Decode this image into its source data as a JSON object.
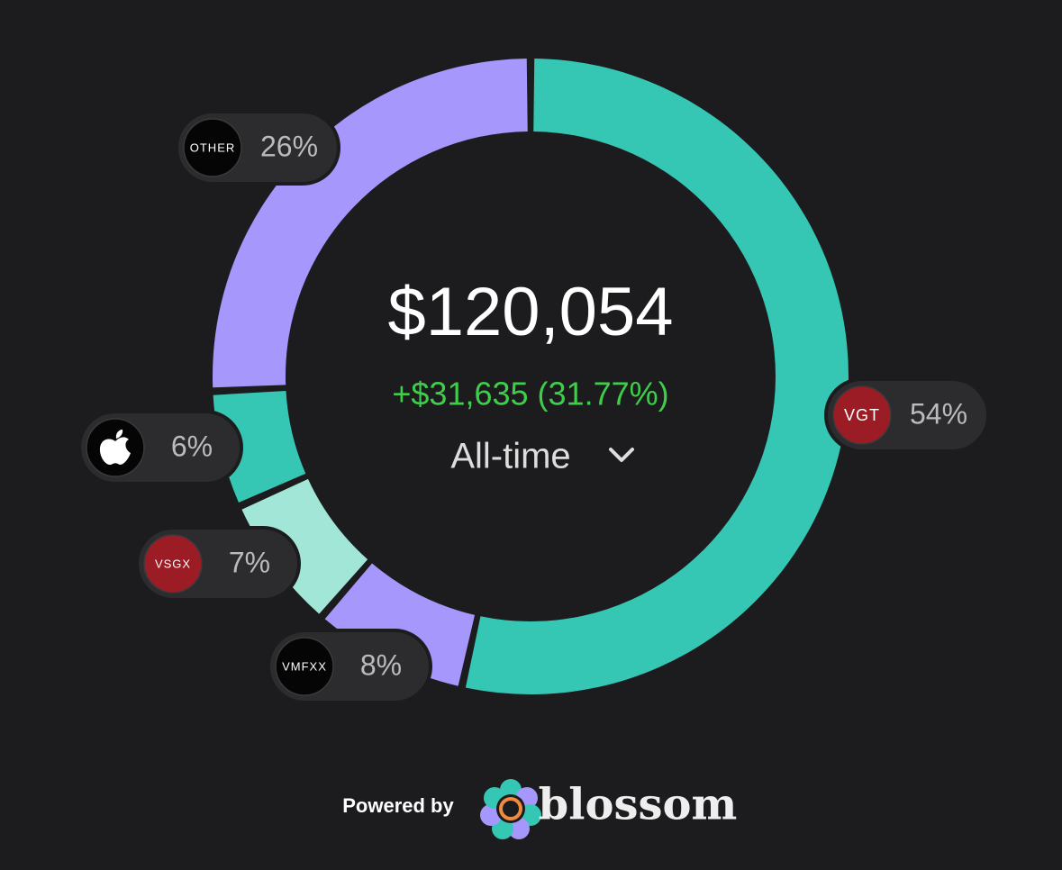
{
  "chart_data": {
    "type": "donut",
    "categories": [
      "VGT",
      "VMFXX",
      "VSGX",
      null,
      "OTHER"
    ],
    "values": [
      54,
      8,
      7,
      6,
      26
    ],
    "value_labels": [
      "54%",
      "8%",
      "7%",
      "6%",
      "26%"
    ],
    "colors": [
      "#36c6b4",
      "#a597fb",
      "#a2e6d8",
      "#36c6b4",
      "#a597fb"
    ],
    "badge_colors": [
      "#9b1c24",
      "#050505",
      "#9b1c24",
      "#050505",
      "#050505"
    ],
    "total": "$120,054",
    "change": "+$31,635 (31.77%)",
    "period": "All-time"
  },
  "footer": {
    "powered_by": "Powered by",
    "brand": "blossom"
  }
}
